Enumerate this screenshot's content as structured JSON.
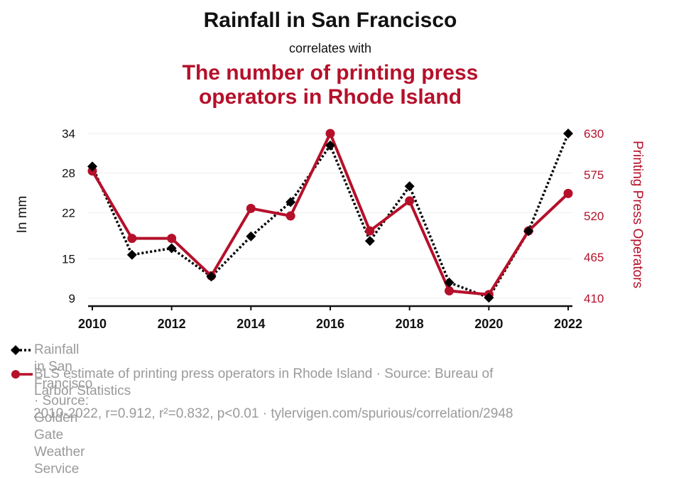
{
  "titles": {
    "main": "Rainfall in San Francisco",
    "connector": "correlates with",
    "secondary_line1": "The number of printing press",
    "secondary_line2": "operators in Rhode Island"
  },
  "legend": {
    "series1": "Rainfall in San Francisco · Source: Golden Gate Weather Service",
    "series2_line1": "BLS estimate of printing press operators in Rhode Island · Source: Bureau of",
    "series2_line2": "Larbor Statistics"
  },
  "footer": "2010-2022, r=0.912, r²=0.832, p<0.01 · tylervigen.com/spurious/correlation/2948",
  "colors": {
    "series1": "#000000",
    "series2": "#b5102a",
    "grid": "#eeeeee"
  },
  "chart_data": {
    "type": "line",
    "x": [
      2010,
      2011,
      2012,
      2013,
      2014,
      2015,
      2016,
      2017,
      2018,
      2019,
      2020,
      2021,
      2022
    ],
    "x_ticks": [
      "2010",
      "2012",
      "2014",
      "2016",
      "2018",
      "2020",
      "2022"
    ],
    "y_left": {
      "label": "In mm",
      "range": [
        9,
        34
      ],
      "ticks": [
        "9",
        "15",
        "22",
        "28",
        "34"
      ]
    },
    "y_right": {
      "label": "Printing Press Operators",
      "range": [
        410,
        630
      ],
      "ticks": [
        "410",
        "465",
        "520",
        "575",
        "630"
      ]
    },
    "series": [
      {
        "name": "Rainfall in San Francisco",
        "axis": "left",
        "marker": "diamond",
        "style": "dotted",
        "values": [
          29.0,
          15.6,
          16.6,
          12.3,
          18.4,
          23.6,
          32.2,
          17.7,
          26.0,
          11.4,
          9.1,
          19.2,
          34.0
        ]
      },
      {
        "name": "BLS estimate of printing press operators in Rhode Island",
        "axis": "right",
        "marker": "circle",
        "style": "solid",
        "values": [
          580,
          490,
          490,
          440,
          530,
          520,
          630,
          500,
          540,
          420,
          415,
          500,
          550
        ]
      }
    ]
  }
}
